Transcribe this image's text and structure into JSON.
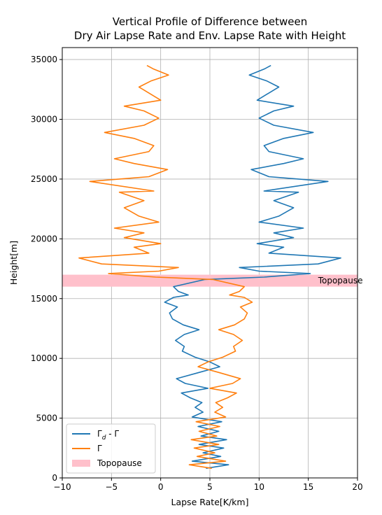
{
  "chart_data": {
    "type": "line",
    "title": [
      "Vertical Profile of Difference between",
      "Dry Air Lapse Rate and Env. Lapse Rate with Height"
    ],
    "xlabel": "Lapse Rate[K/km]",
    "ylabel": "Height[m]",
    "xlim": [
      -10,
      20
    ],
    "ylim": [
      0,
      36000
    ],
    "xticks": [
      -10,
      -5,
      0,
      5,
      10,
      15,
      20
    ],
    "yticks": [
      0,
      5000,
      10000,
      15000,
      20000,
      25000,
      30000,
      35000
    ],
    "grid": true,
    "legend_position": "lower-left",
    "band": {
      "name": "Topopause",
      "y0": 16000,
      "y1": 17000,
      "color": "#ffc0cb",
      "annotation": "Topopause",
      "annotation_x": 16
    },
    "series": [
      {
        "name": "Γd - Γ",
        "color": "#1f77b4",
        "points": [
          [
            4.6,
            800
          ],
          [
            6.9,
            1100
          ],
          [
            3.2,
            1400
          ],
          [
            6.1,
            1800
          ],
          [
            4.3,
            2100
          ],
          [
            6.4,
            2500
          ],
          [
            3.9,
            2800
          ],
          [
            6.7,
            3200
          ],
          [
            4.1,
            3500
          ],
          [
            5.9,
            3900
          ],
          [
            3.8,
            4300
          ],
          [
            6.2,
            4700
          ],
          [
            3.2,
            5100
          ],
          [
            4.3,
            5500
          ],
          [
            3.5,
            5900
          ],
          [
            4.2,
            6300
          ],
          [
            3.0,
            6700
          ],
          [
            2.1,
            7100
          ],
          [
            4.8,
            7500
          ],
          [
            2.5,
            7900
          ],
          [
            1.6,
            8300
          ],
          [
            3.8,
            8800
          ],
          [
            6.0,
            9300
          ],
          [
            5.0,
            9700
          ],
          [
            3.5,
            10100
          ],
          [
            2.2,
            10600
          ],
          [
            2.4,
            11000
          ],
          [
            1.5,
            11500
          ],
          [
            2.4,
            12000
          ],
          [
            3.9,
            12400
          ],
          [
            2.3,
            12800
          ],
          [
            1.2,
            13300
          ],
          [
            0.9,
            13800
          ],
          [
            1.7,
            14300
          ],
          [
            0.4,
            14700
          ],
          [
            1.3,
            15100
          ],
          [
            2.8,
            15300
          ],
          [
            1.8,
            15600
          ],
          [
            1.3,
            16000
          ],
          [
            4.5,
            16600
          ],
          [
            10.5,
            16800
          ],
          [
            15.2,
            17100
          ],
          [
            10.0,
            17300
          ],
          [
            8.0,
            17600
          ],
          [
            16.0,
            17900
          ],
          [
            18.3,
            18400
          ],
          [
            11.0,
            18800
          ],
          [
            12.5,
            19300
          ],
          [
            9.8,
            19600
          ],
          [
            13.5,
            20100
          ],
          [
            11.5,
            20500
          ],
          [
            14.5,
            20900
          ],
          [
            10.0,
            21400
          ],
          [
            12.0,
            21900
          ],
          [
            13.5,
            22600
          ],
          [
            11.5,
            23200
          ],
          [
            14.0,
            23900
          ],
          [
            10.5,
            24000
          ],
          [
            17.0,
            24800
          ],
          [
            11.0,
            25200
          ],
          [
            9.2,
            25800
          ],
          [
            12.5,
            26300
          ],
          [
            14.5,
            26700
          ],
          [
            11.0,
            27300
          ],
          [
            10.5,
            27800
          ],
          [
            12.5,
            28400
          ],
          [
            15.5,
            28900
          ],
          [
            11.5,
            29500
          ],
          [
            10.0,
            30100
          ],
          [
            11.5,
            30700
          ],
          [
            13.5,
            31100
          ],
          [
            9.8,
            31600
          ],
          [
            11.0,
            32200
          ],
          [
            12.0,
            32700
          ],
          [
            10.8,
            33200
          ],
          [
            9.0,
            33700
          ],
          [
            10.5,
            34200
          ],
          [
            11.2,
            34500
          ]
        ]
      },
      {
        "name": "Γ",
        "color": "#ff7f0e",
        "points": [
          [
            5.2,
            800
          ],
          [
            2.9,
            1100
          ],
          [
            6.6,
            1400
          ],
          [
            3.7,
            1800
          ],
          [
            5.5,
            2100
          ],
          [
            3.4,
            2500
          ],
          [
            5.9,
            2800
          ],
          [
            3.1,
            3200
          ],
          [
            5.7,
            3500
          ],
          [
            3.9,
            3900
          ],
          [
            6.0,
            4300
          ],
          [
            3.6,
            4700
          ],
          [
            6.6,
            5100
          ],
          [
            5.5,
            5500
          ],
          [
            6.3,
            5900
          ],
          [
            5.6,
            6300
          ],
          [
            6.8,
            6700
          ],
          [
            7.7,
            7100
          ],
          [
            5.0,
            7500
          ],
          [
            7.3,
            7900
          ],
          [
            8.1,
            8300
          ],
          [
            6.0,
            8800
          ],
          [
            3.8,
            9300
          ],
          [
            4.8,
            9700
          ],
          [
            6.3,
            10100
          ],
          [
            7.6,
            10600
          ],
          [
            7.4,
            11000
          ],
          [
            8.3,
            11500
          ],
          [
            7.4,
            12000
          ],
          [
            5.9,
            12400
          ],
          [
            7.5,
            12800
          ],
          [
            8.5,
            13300
          ],
          [
            8.8,
            13800
          ],
          [
            8.1,
            14300
          ],
          [
            9.3,
            14700
          ],
          [
            8.5,
            15100
          ],
          [
            7.0,
            15300
          ],
          [
            8.0,
            15600
          ],
          [
            8.5,
            16000
          ],
          [
            5.3,
            16600
          ],
          [
            -0.5,
            16800
          ],
          [
            -5.3,
            17100
          ],
          [
            -0.2,
            17300
          ],
          [
            1.8,
            17600
          ],
          [
            -6.0,
            17900
          ],
          [
            -8.3,
            18400
          ],
          [
            -1.2,
            18800
          ],
          [
            -2.7,
            19300
          ],
          [
            0.0,
            19600
          ],
          [
            -3.7,
            20100
          ],
          [
            -1.7,
            20500
          ],
          [
            -4.7,
            20900
          ],
          [
            -0.2,
            21400
          ],
          [
            -2.2,
            21900
          ],
          [
            -3.7,
            22600
          ],
          [
            -1.7,
            23200
          ],
          [
            -4.2,
            23900
          ],
          [
            -0.7,
            24000
          ],
          [
            -7.2,
            24800
          ],
          [
            -1.2,
            25200
          ],
          [
            0.7,
            25800
          ],
          [
            -2.7,
            26300
          ],
          [
            -4.7,
            26700
          ],
          [
            -1.2,
            27300
          ],
          [
            -0.7,
            27800
          ],
          [
            -2.7,
            28400
          ],
          [
            -5.7,
            28900
          ],
          [
            -1.7,
            29500
          ],
          [
            -0.2,
            30100
          ],
          [
            -1.7,
            30700
          ],
          [
            -3.7,
            31100
          ],
          [
            0.0,
            31600
          ],
          [
            -1.2,
            32200
          ],
          [
            -2.2,
            32700
          ],
          [
            -1.0,
            33200
          ],
          [
            0.8,
            33700
          ],
          [
            -0.7,
            34200
          ],
          [
            -1.4,
            34500
          ]
        ]
      }
    ],
    "legend": [
      {
        "label": "Γd - Γ",
        "kind": "line",
        "color": "#1f77b4"
      },
      {
        "label": "Γ",
        "kind": "line",
        "color": "#ff7f0e"
      },
      {
        "label": "Topopause",
        "kind": "patch",
        "color": "#ffc0cb"
      }
    ]
  }
}
